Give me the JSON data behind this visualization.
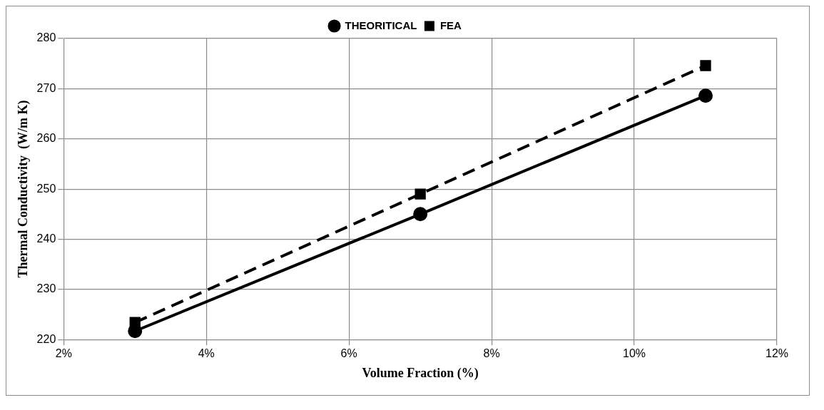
{
  "chart_data": {
    "type": "line",
    "xlabel": "Volume Fraction (%)",
    "ylabel": "Thermal Conductivity  (W/m K)",
    "x": [
      3,
      7,
      11
    ],
    "series": [
      {
        "name": "THEORITICAL",
        "color": "#000000",
        "values": [
          221.7,
          245.0,
          268.6
        ],
        "marker": "circle",
        "line_style": "solid"
      },
      {
        "name": "FEA",
        "color": "#000000",
        "values": [
          223.4,
          249.0,
          274.6
        ],
        "marker": "square",
        "line_style": "dashed"
      }
    ],
    "xlim": [
      2,
      12
    ],
    "xticks": [
      {
        "value": 2,
        "label": "2%"
      },
      {
        "value": 4,
        "label": "4%"
      },
      {
        "value": 6,
        "label": "6%"
      },
      {
        "value": 8,
        "label": "8%"
      },
      {
        "value": 10,
        "label": "10%"
      },
      {
        "value": 12,
        "label": "12%"
      }
    ],
    "ylim": [
      220,
      280
    ],
    "yticks": [
      220,
      230,
      240,
      250,
      260,
      270,
      280
    ],
    "grid": true,
    "legend": "top"
  }
}
